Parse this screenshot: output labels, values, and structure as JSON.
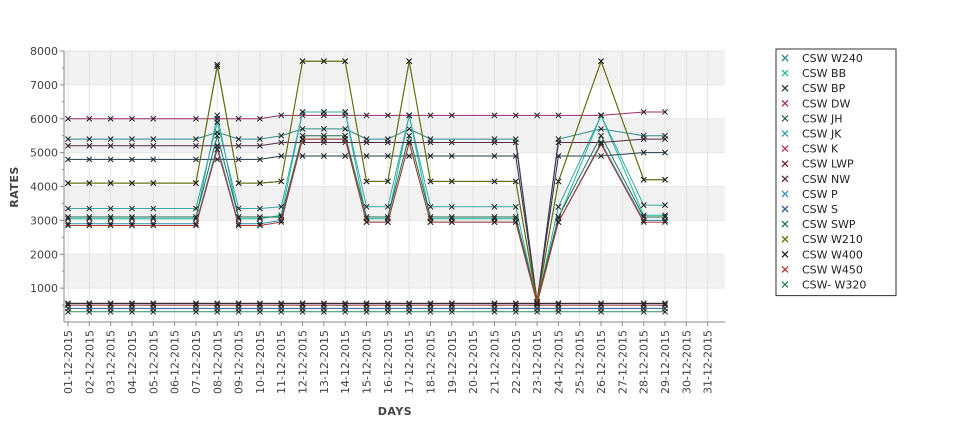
{
  "chart_data": {
    "type": "line",
    "title": "",
    "xlabel": "DAYS",
    "ylabel": "RATES",
    "ylim": [
      0,
      8000
    ],
    "y_ticks": [
      1000,
      2000,
      3000,
      4000,
      5000,
      6000,
      7000,
      8000
    ],
    "grid": true,
    "legend_position": "right",
    "marker": "x",
    "categories": [
      "01-12-2015",
      "02-12-2015",
      "03-12-2015",
      "04-12-2015",
      "05-12-2015",
      "06-12-2015",
      "07-12-2015",
      "08-12-2015",
      "09-12-2015",
      "10-12-2015",
      "11-12-2015",
      "12-12-2015",
      "13-12-2015",
      "14-12-2015",
      "15-12-2015",
      "16-12-2015",
      "17-12-2015",
      "18-12-2015",
      "19-12-2015",
      "20-12-2015",
      "21-12-2015",
      "22-12-2015",
      "23-12-2015",
      "24-12-2015",
      "25-12-2015",
      "26-12-2015",
      "27-12-2015",
      "28-12-2015",
      "29-12-2015",
      "30-12-2015",
      "31-12-2015"
    ],
    "series": [
      {
        "name": "CSW  W240",
        "color": "#2e8b8b",
        "values": [
          5400,
          5400,
          5400,
          5400,
          5400,
          null,
          5400,
          5600,
          5400,
          5400,
          5500,
          5700,
          5700,
          5700,
          5400,
          5400,
          5700,
          5400,
          null,
          null,
          5400,
          5400,
          600,
          5400,
          null,
          5700,
          null,
          5500,
          5500,
          null,
          null
        ]
      },
      {
        "name": "CSW BB",
        "color": "#1abc9c",
        "values": [
          3050,
          3050,
          3050,
          3050,
          3050,
          null,
          3050,
          6100,
          3050,
          3050,
          3150,
          6200,
          6200,
          6200,
          3050,
          3050,
          6100,
          3050,
          3050,
          null,
          3050,
          3050,
          550,
          3050,
          null,
          6100,
          null,
          3150,
          3150,
          null,
          null
        ]
      },
      {
        "name": "CSW BP",
        "color": "#1c3b4a",
        "values": [
          4800,
          4800,
          4800,
          4800,
          4800,
          null,
          4800,
          4800,
          4800,
          4800,
          4900,
          4900,
          4900,
          4900,
          4900,
          4900,
          4900,
          4900,
          4900,
          null,
          4900,
          4900,
          600,
          4900,
          null,
          4900,
          null,
          5000,
          5000,
          null,
          null
        ]
      },
      {
        "name": "CSW DW",
        "color": "#9b2a6e",
        "values": [
          6000,
          6000,
          6000,
          6000,
          6000,
          null,
          6000,
          6000,
          6000,
          6000,
          6100,
          6100,
          6100,
          6100,
          6100,
          6100,
          6100,
          6100,
          6100,
          null,
          6100,
          6100,
          6100,
          6100,
          null,
          6100,
          null,
          6200,
          6200,
          null,
          null
        ]
      },
      {
        "name": "CSW JH",
        "color": "#2f6b3a",
        "values": [
          4100,
          4100,
          4100,
          4100,
          4100,
          null,
          4100,
          7600,
          4100,
          4100,
          4150,
          7700,
          7700,
          7700,
          4150,
          4150,
          7700,
          4150,
          4150,
          null,
          4150,
          4150,
          550,
          4150,
          null,
          7700,
          null,
          4200,
          4200,
          null,
          null
        ]
      },
      {
        "name": "CSW JK",
        "color": "#3aa6a6",
        "values": [
          3350,
          3350,
          3350,
          3350,
          3350,
          null,
          3350,
          5900,
          3350,
          3350,
          3400,
          6200,
          6200,
          6200,
          3400,
          3400,
          6100,
          3400,
          3400,
          null,
          3400,
          3400,
          550,
          3400,
          null,
          6100,
          null,
          3450,
          3450,
          null,
          null
        ]
      },
      {
        "name": "CSW K",
        "color": "#c0305a",
        "values": [
          550,
          550,
          550,
          550,
          550,
          null,
          550,
          550,
          550,
          550,
          550,
          550,
          550,
          550,
          550,
          550,
          550,
          550,
          550,
          null,
          550,
          550,
          550,
          550,
          null,
          550,
          null,
          550,
          550,
          null,
          null
        ]
      },
      {
        "name": "CSW LWP",
        "color": "#7a1f2b",
        "values": [
          500,
          500,
          500,
          500,
          500,
          null,
          500,
          500,
          500,
          500,
          500,
          500,
          500,
          500,
          500,
          500,
          500,
          500,
          500,
          null,
          500,
          500,
          500,
          500,
          null,
          500,
          null,
          500,
          500,
          null,
          null
        ]
      },
      {
        "name": "CSW NW",
        "color": "#5a2a4a",
        "values": [
          5200,
          5200,
          5200,
          5200,
          5200,
          null,
          5200,
          5200,
          5200,
          5200,
          5300,
          5300,
          5300,
          5300,
          5300,
          5300,
          5300,
          5300,
          5300,
          null,
          5300,
          5300,
          600,
          5300,
          null,
          5300,
          null,
          5400,
          5400,
          null,
          null
        ]
      },
      {
        "name": "CSW P",
        "color": "#2a8fbf",
        "values": [
          2900,
          2900,
          2900,
          2900,
          2900,
          null,
          2900,
          5200,
          2900,
          2900,
          3000,
          5400,
          5400,
          5400,
          2950,
          2950,
          5300,
          2950,
          2950,
          null,
          2950,
          2950,
          550,
          2950,
          null,
          5300,
          null,
          3000,
          3000,
          null,
          null
        ]
      },
      {
        "name": "CSW S",
        "color": "#2d5fa0",
        "values": [
          400,
          400,
          400,
          400,
          400,
          null,
          400,
          400,
          400,
          400,
          400,
          400,
          400,
          400,
          400,
          400,
          400,
          400,
          400,
          null,
          400,
          400,
          400,
          400,
          null,
          400,
          null,
          400,
          400,
          null,
          null
        ]
      },
      {
        "name": "CSW SWP",
        "color": "#1f6f54",
        "values": [
          3100,
          3100,
          3100,
          3100,
          3100,
          null,
          3100,
          5500,
          3100,
          3100,
          3100,
          5500,
          5500,
          5500,
          3100,
          3100,
          5500,
          3100,
          3100,
          null,
          3100,
          3100,
          600,
          3100,
          null,
          5500,
          null,
          3100,
          3100,
          null,
          null
        ]
      },
      {
        "name": "CSW W210",
        "color": "#6b6b00",
        "values": [
          4100,
          4100,
          4100,
          4100,
          4100,
          null,
          4100,
          7550,
          4100,
          4100,
          4150,
          7700,
          7700,
          7700,
          4150,
          4150,
          7700,
          4150,
          4150,
          null,
          4150,
          4150,
          600,
          4150,
          null,
          7700,
          null,
          4200,
          4200,
          null,
          null
        ]
      },
      {
        "name": "CSW W400",
        "color": "#222222",
        "values": [
          550,
          550,
          550,
          550,
          550,
          null,
          550,
          550,
          550,
          550,
          550,
          550,
          550,
          550,
          550,
          550,
          550,
          550,
          550,
          null,
          550,
          550,
          550,
          550,
          null,
          550,
          null,
          550,
          550,
          null,
          null
        ]
      },
      {
        "name": "CSW W450",
        "color": "#b0352a",
        "values": [
          2850,
          2850,
          2850,
          2850,
          2850,
          null,
          2850,
          5100,
          2850,
          2850,
          2950,
          5400,
          5400,
          5400,
          2950,
          2950,
          5300,
          2950,
          2950,
          null,
          2950,
          2950,
          550,
          2950,
          null,
          5250,
          null,
          2950,
          2950,
          null,
          null
        ]
      },
      {
        "name": "CSW- W320",
        "color": "#2e8b57",
        "values": [
          300,
          300,
          300,
          300,
          300,
          null,
          300,
          300,
          300,
          300,
          300,
          300,
          300,
          300,
          300,
          300,
          300,
          300,
          300,
          null,
          300,
          300,
          300,
          300,
          null,
          300,
          null,
          300,
          300,
          null,
          null
        ]
      }
    ]
  }
}
